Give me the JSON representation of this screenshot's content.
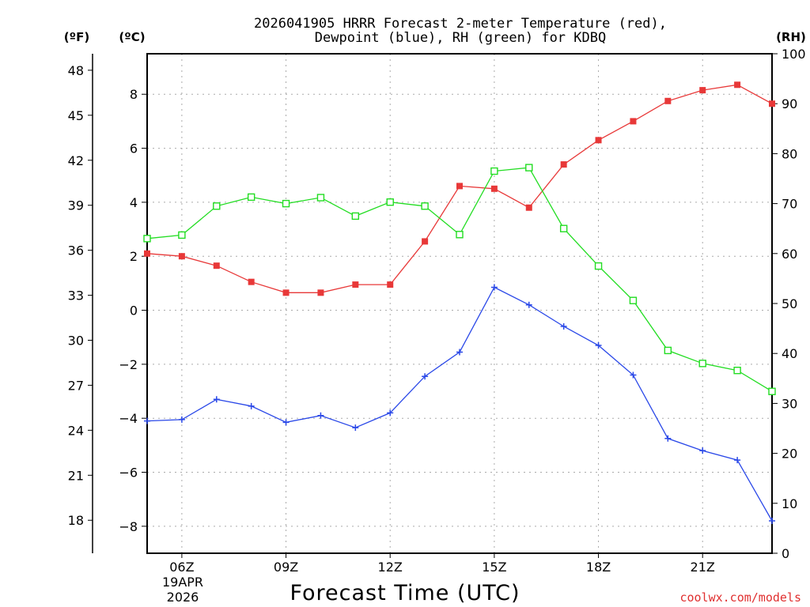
{
  "chart_data": {
    "type": "line",
    "title_line1": "2026041905 HRRR Forecast 2-meter Temperature (red),",
    "title_line2": "Dewpoint (blue), RH (green) for KDBQ",
    "xlabel": "Forecast Time (UTC)",
    "credit": "coolwx.com/models",
    "units": {
      "fahrenheit": "(ºF)",
      "celsius": "(ºC)",
      "rh": "(RH)"
    },
    "date_label": [
      "19APR",
      "2026"
    ],
    "x_hours": [
      5,
      6,
      7,
      8,
      9,
      10,
      11,
      12,
      13,
      14,
      15,
      16,
      17,
      18,
      19,
      20,
      21,
      22,
      23
    ],
    "x_range": [
      5,
      23
    ],
    "x_ticks": [
      {
        "hour": 6,
        "label": "06Z"
      },
      {
        "hour": 9,
        "label": "09Z"
      },
      {
        "hour": 12,
        "label": "12Z"
      },
      {
        "hour": 15,
        "label": "15Z"
      },
      {
        "hour": 18,
        "label": "18Z"
      },
      {
        "hour": 21,
        "label": "21Z"
      }
    ],
    "celsius_axis": {
      "range": [
        -9,
        9.5
      ],
      "ticks": [
        -8,
        -6,
        -4,
        -2,
        0,
        2,
        4,
        6,
        8
      ],
      "tick_labels": [
        "−8",
        "−6",
        "−4",
        "−2",
        "0",
        "2",
        "4",
        "6",
        "8"
      ]
    },
    "fahrenheit_axis": {
      "ticks": [
        18,
        21,
        24,
        27,
        30,
        33,
        36,
        39,
        42,
        45,
        48
      ],
      "tick_labels": [
        "18",
        "21",
        "24",
        "27",
        "30",
        "33",
        "36",
        "39",
        "42",
        "45",
        "48"
      ]
    },
    "rh_axis": {
      "range": [
        0,
        100
      ],
      "ticks": [
        0,
        10,
        20,
        30,
        40,
        50,
        60,
        70,
        80,
        90,
        100
      ],
      "tick_labels": [
        "0",
        "10",
        "20",
        "30",
        "40",
        "50",
        "60",
        "70",
        "80",
        "90",
        "100"
      ]
    },
    "series": [
      {
        "name": "2-meter Temperature",
        "axis": "celsius",
        "color": "#e83838",
        "marker": "filled-square",
        "values": [
          2.1,
          2.0,
          1.65,
          1.05,
          0.65,
          0.65,
          0.95,
          0.95,
          2.55,
          4.6,
          4.5,
          3.8,
          5.4,
          6.3,
          7.0,
          7.75,
          8.15,
          8.35,
          7.65
        ]
      },
      {
        "name": "Dewpoint",
        "axis": "celsius",
        "color": "#2a48e8",
        "marker": "plus",
        "values": [
          -4.1,
          -4.05,
          -3.3,
          -3.55,
          -4.15,
          -3.9,
          -4.35,
          -3.8,
          -2.45,
          -1.55,
          0.85,
          0.2,
          -0.6,
          -1.3,
          -2.4,
          -4.75,
          -5.2,
          -5.55,
          -7.8
        ]
      },
      {
        "name": "Relative Humidity",
        "axis": "rh",
        "color": "#22dd22",
        "marker": "open-square",
        "values": [
          63.0,
          63.7,
          69.5,
          71.3,
          70.0,
          71.2,
          67.5,
          70.3,
          69.5,
          63.8,
          76.5,
          77.2,
          65.0,
          57.5,
          50.6,
          40.6,
          38.0,
          36.6,
          32.4
        ]
      }
    ]
  }
}
